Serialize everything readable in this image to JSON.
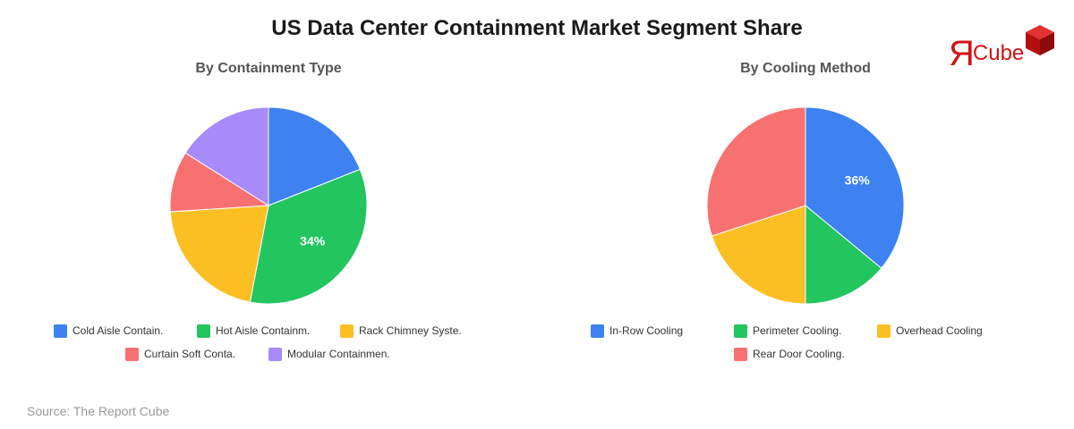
{
  "title": "US Data Center Containment Market Segment Share",
  "source": "Source: The Report Cube",
  "logo": {
    "text": "Cube",
    "mark": "Я"
  },
  "colors": {
    "blue": "#3d82f0",
    "green": "#22c55e",
    "yellow": "#fbbf24",
    "red": "#f87171",
    "purple": "#a78bfa",
    "logo_red": "#d01414"
  },
  "chart_data": [
    {
      "type": "pie",
      "title": "By Containment Type",
      "labels": [
        "Cold Aisle Contain.",
        "Hot Aisle Containm.",
        "Rack Chimney Syste.",
        "Curtain Soft Conta.",
        "Modular Containmen."
      ],
      "values": [
        19,
        34,
        21,
        10,
        16
      ],
      "colors": [
        "#3d82f0",
        "#22c55e",
        "#fbbf24",
        "#f87171",
        "#a78bfa"
      ],
      "data_labels": [
        "",
        "34%",
        "",
        "",
        ""
      ],
      "legend_position": "bottom"
    },
    {
      "type": "pie",
      "title": "By Cooling Method",
      "labels": [
        "In-Row Cooling",
        "Perimeter Cooling.",
        "Overhead Cooling",
        "Rear Door Cooling."
      ],
      "values": [
        36,
        14,
        20,
        30
      ],
      "colors": [
        "#3d82f0",
        "#22c55e",
        "#fbbf24",
        "#f87171"
      ],
      "data_labels": [
        "36%",
        "",
        "",
        ""
      ],
      "legend_position": "bottom"
    }
  ]
}
